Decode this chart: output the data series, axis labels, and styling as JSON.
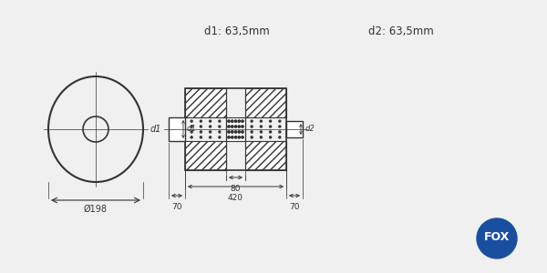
{
  "bg_color": "#f0f0f0",
  "line_color": "#333333",
  "hatch_color": "#555555",
  "dim_color": "#333333",
  "text_color": "#333333",
  "title_d1": "d1: 63,5mm",
  "title_d2": "d2: 63,5mm",
  "dim_198": "Ø198",
  "dim_70_left": "70",
  "dim_420": "420",
  "dim_80": "80",
  "dim_70_right": "70",
  "label_d1": "d1",
  "label_d2": "d2",
  "fox_text": "FOX",
  "fox_circle_color": "#1a4fa0",
  "fox_text_color": "#ffffff"
}
